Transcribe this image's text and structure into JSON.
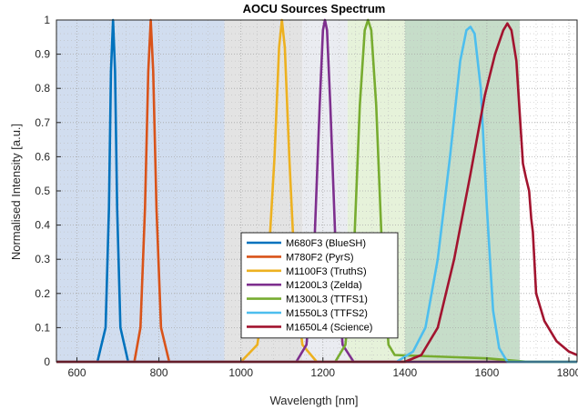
{
  "chart_data": {
    "type": "line",
    "title": "AOCU Sources Spectrum",
    "xlabel": "Wavelength [nm]",
    "ylabel": "Normalised Intensity [a.u.]",
    "xlim": [
      550,
      1820
    ],
    "ylim": [
      0,
      1
    ],
    "xticks": [
      600,
      800,
      1000,
      1200,
      1400,
      1600,
      1800
    ],
    "yticks": [
      0,
      0.1,
      0.2,
      0.3,
      0.4,
      0.5,
      0.6,
      0.7,
      0.8,
      0.9,
      1
    ],
    "xtick_labels": [
      "600",
      "800",
      "1000",
      "1200",
      "1400",
      "1600",
      "1800"
    ],
    "ytick_labels": [
      "0",
      "0.1",
      "0.2",
      "0.3",
      "0.4",
      "0.5",
      "0.6",
      "0.7",
      "0.8",
      "0.9",
      "1"
    ],
    "grid": true,
    "legend_position": "bottom-center",
    "bands": [
      {
        "from": 550,
        "to": 960,
        "color": "#c9d7ec"
      },
      {
        "from": 960,
        "to": 1150,
        "color": "#dedede"
      },
      {
        "from": 1150,
        "to": 1260,
        "color": "#e6e9ef"
      },
      {
        "from": 1260,
        "to": 1400,
        "color": "#e2f0d4"
      },
      {
        "from": 1400,
        "to": 1680,
        "color": "#bcd7c0"
      }
    ],
    "series": [
      {
        "name": "M680F3 (BlueSH)",
        "color": "#0072bd",
        "points": [
          [
            550,
            0
          ],
          [
            650,
            0
          ],
          [
            670,
            0.1
          ],
          [
            678,
            0.45
          ],
          [
            683,
            0.85
          ],
          [
            688,
            1
          ],
          [
            693,
            0.85
          ],
          [
            698,
            0.45
          ],
          [
            706,
            0.1
          ],
          [
            725,
            0
          ],
          [
            1820,
            0
          ]
        ]
      },
      {
        "name": "M780F2 (PyrS)",
        "color": "#d95319",
        "points": [
          [
            550,
            0
          ],
          [
            740,
            0
          ],
          [
            755,
            0.1
          ],
          [
            766,
            0.45
          ],
          [
            774,
            0.85
          ],
          [
            780,
            1
          ],
          [
            786,
            0.85
          ],
          [
            794,
            0.45
          ],
          [
            805,
            0.1
          ],
          [
            825,
            0
          ],
          [
            1820,
            0
          ]
        ]
      },
      {
        "name": "M1100F3 (TruthS)",
        "color": "#edb120",
        "points": [
          [
            550,
            0
          ],
          [
            1000,
            0
          ],
          [
            1040,
            0.05
          ],
          [
            1065,
            0.25
          ],
          [
            1082,
            0.6
          ],
          [
            1093,
            0.92
          ],
          [
            1100,
            1
          ],
          [
            1107,
            0.92
          ],
          [
            1118,
            0.6
          ],
          [
            1132,
            0.25
          ],
          [
            1150,
            0.05
          ],
          [
            1185,
            0
          ],
          [
            1820,
            0
          ]
        ]
      },
      {
        "name": "M1200L3 (Zelda)",
        "color": "#7e2f8e",
        "points": [
          [
            550,
            0
          ],
          [
            1135,
            0
          ],
          [
            1160,
            0.05
          ],
          [
            1178,
            0.3
          ],
          [
            1192,
            0.75
          ],
          [
            1200,
            0.97
          ],
          [
            1205,
            1
          ],
          [
            1210,
            0.97
          ],
          [
            1218,
            0.75
          ],
          [
            1232,
            0.3
          ],
          [
            1248,
            0.05
          ],
          [
            1275,
            0
          ],
          [
            1820,
            0
          ]
        ]
      },
      {
        "name": "M1300L3 (TTFS1)",
        "color": "#77ac30",
        "points": [
          [
            550,
            0
          ],
          [
            1230,
            0
          ],
          [
            1255,
            0.05
          ],
          [
            1275,
            0.3
          ],
          [
            1290,
            0.75
          ],
          [
            1302,
            0.97
          ],
          [
            1310,
            1
          ],
          [
            1318,
            0.97
          ],
          [
            1330,
            0.75
          ],
          [
            1345,
            0.3
          ],
          [
            1360,
            0.05
          ],
          [
            1375,
            0.02
          ],
          [
            1600,
            0.01
          ],
          [
            1700,
            0
          ],
          [
            1820,
            0
          ]
        ]
      },
      {
        "name": "M1550L3 (TTFS2)",
        "color": "#4dbeee",
        "points": [
          [
            550,
            0
          ],
          [
            1380,
            0
          ],
          [
            1420,
            0.03
          ],
          [
            1450,
            0.1
          ],
          [
            1480,
            0.3
          ],
          [
            1510,
            0.6
          ],
          [
            1535,
            0.88
          ],
          [
            1550,
            0.97
          ],
          [
            1560,
            0.98
          ],
          [
            1570,
            0.96
          ],
          [
            1585,
            0.8
          ],
          [
            1600,
            0.45
          ],
          [
            1615,
            0.15
          ],
          [
            1630,
            0.04
          ],
          [
            1650,
            0
          ],
          [
            1820,
            0
          ]
        ]
      },
      {
        "name": "M1650L4 (Science)",
        "color": "#a2142f",
        "points": [
          [
            550,
            0
          ],
          [
            1400,
            0
          ],
          [
            1440,
            0.02
          ],
          [
            1480,
            0.1
          ],
          [
            1520,
            0.3
          ],
          [
            1560,
            0.55
          ],
          [
            1595,
            0.78
          ],
          [
            1620,
            0.9
          ],
          [
            1640,
            0.97
          ],
          [
            1650,
            0.99
          ],
          [
            1660,
            0.97
          ],
          [
            1672,
            0.88
          ],
          [
            1688,
            0.58
          ],
          [
            1695,
            0.54
          ],
          [
            1703,
            0.5
          ],
          [
            1708,
            0.42
          ],
          [
            1712,
            0.38
          ],
          [
            1720,
            0.2
          ],
          [
            1740,
            0.12
          ],
          [
            1770,
            0.06
          ],
          [
            1800,
            0.03
          ],
          [
            1820,
            0.02
          ]
        ]
      }
    ]
  }
}
